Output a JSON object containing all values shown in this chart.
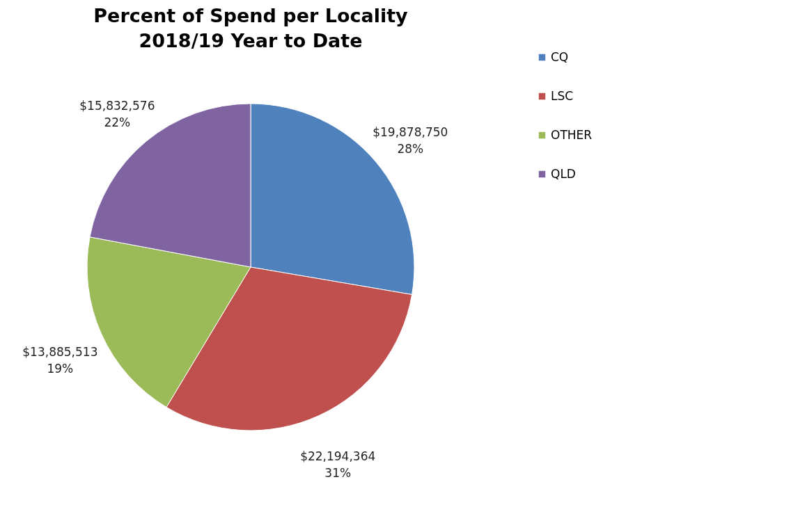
{
  "chart_data": {
    "type": "pie",
    "title": "Percent of Spend per Locality\n2018/19 Year to Date",
    "categories": [
      "CQ",
      "LSC",
      "OTHER",
      "QLD"
    ],
    "values": [
      19878750,
      22194364,
      13885513,
      15832576
    ],
    "colors": [
      "#4f81bd",
      "#c0504d",
      "#9bbb59",
      "#8064a2"
    ],
    "value_labels": [
      "$19,878,750\n28%",
      "$22,194,364\n31%",
      "$13,885,513\n19%",
      "$15,832,576\n22%"
    ],
    "legend": "right"
  }
}
